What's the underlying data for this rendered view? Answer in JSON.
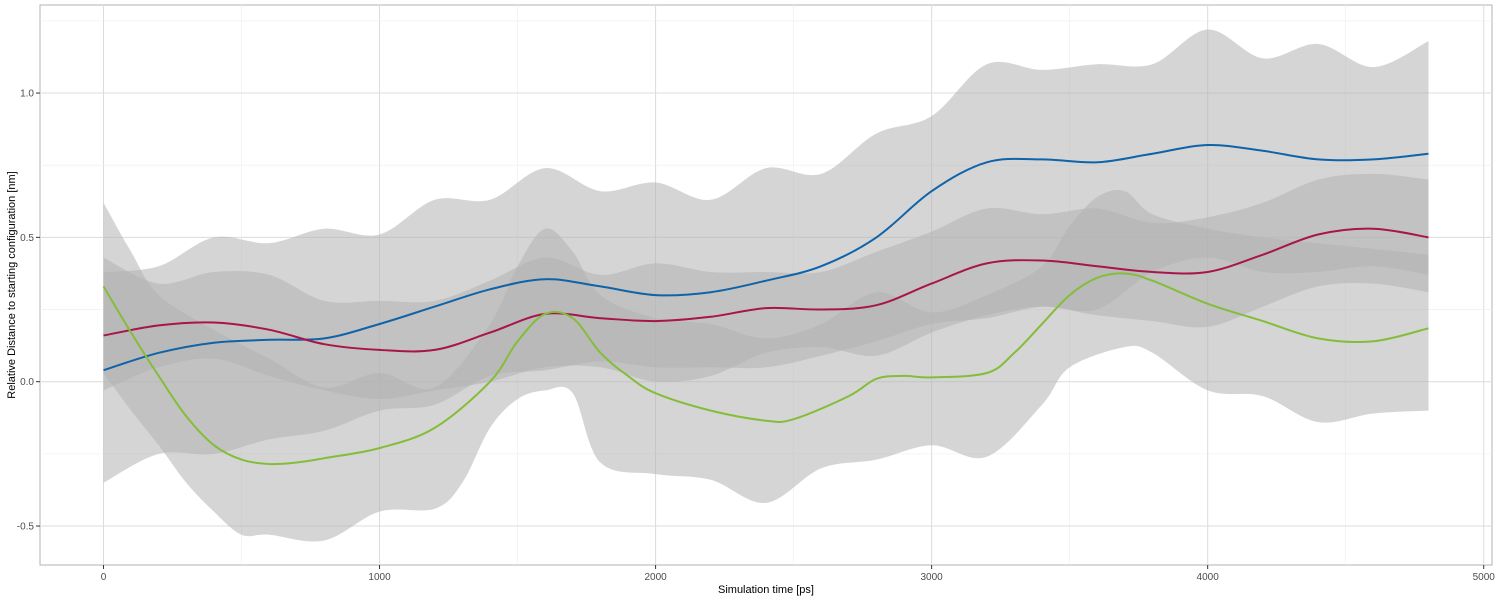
{
  "chart_data": {
    "type": "line",
    "title": "",
    "xlabel": "Simulation time [ps]",
    "ylabel": "Relative Distance to starting configuration [nm]",
    "xlim": [
      -230,
      5030
    ],
    "ylim": [
      -0.635,
      1.305
    ],
    "x_ticks": [
      0,
      1000,
      2000,
      3000,
      4000,
      5000
    ],
    "x_tick_labels": [
      "0",
      "1000",
      "2000",
      "3000",
      "4000",
      "5000"
    ],
    "y_ticks": [
      -0.5,
      0.0,
      0.5,
      1.0
    ],
    "y_tick_labels": [
      "-0.5",
      "0.0",
      "0.5",
      "1.0"
    ],
    "grid": true,
    "legend": "none",
    "series": [
      {
        "color": "#0f63a8",
        "band_color": "#b3b3b3",
        "points": [
          [
            0,
            0.04
          ],
          [
            200,
            0.1
          ],
          [
            400,
            0.135
          ],
          [
            600,
            0.145
          ],
          [
            800,
            0.15
          ],
          [
            1000,
            0.2
          ],
          [
            1200,
            0.26
          ],
          [
            1400,
            0.32
          ],
          [
            1600,
            0.355
          ],
          [
            1800,
            0.33
          ],
          [
            2000,
            0.3
          ],
          [
            2200,
            0.31
          ],
          [
            2400,
            0.35
          ],
          [
            2600,
            0.4
          ],
          [
            2800,
            0.5
          ],
          [
            3000,
            0.66
          ],
          [
            3200,
            0.76
          ],
          [
            3400,
            0.77
          ],
          [
            3600,
            0.76
          ],
          [
            3800,
            0.79
          ],
          [
            4000,
            0.82
          ],
          [
            4200,
            0.8
          ],
          [
            4400,
            0.77
          ],
          [
            4600,
            0.77
          ],
          [
            4800,
            0.79
          ]
        ],
        "upper": [
          [
            0,
            0.38
          ],
          [
            200,
            0.4
          ],
          [
            400,
            0.5
          ],
          [
            600,
            0.48
          ],
          [
            800,
            0.53
          ],
          [
            1000,
            0.51
          ],
          [
            1200,
            0.63
          ],
          [
            1400,
            0.63
          ],
          [
            1600,
            0.74
          ],
          [
            1800,
            0.66
          ],
          [
            2000,
            0.69
          ],
          [
            2200,
            0.63
          ],
          [
            2400,
            0.74
          ],
          [
            2600,
            0.72
          ],
          [
            2800,
            0.86
          ],
          [
            3000,
            0.92
          ],
          [
            3200,
            1.1
          ],
          [
            3400,
            1.08
          ],
          [
            3600,
            1.1
          ],
          [
            3800,
            1.1
          ],
          [
            4000,
            1.22
          ],
          [
            4200,
            1.12
          ],
          [
            4400,
            1.17
          ],
          [
            4600,
            1.09
          ],
          [
            4800,
            1.18
          ]
        ],
        "lower": [
          [
            0,
            -0.35
          ],
          [
            200,
            -0.25
          ],
          [
            400,
            -0.25
          ],
          [
            600,
            -0.2
          ],
          [
            800,
            -0.17
          ],
          [
            1000,
            -0.1
          ],
          [
            1200,
            -0.08
          ],
          [
            1400,
            0.02
          ],
          [
            1600,
            0.04
          ],
          [
            1800,
            0.07
          ],
          [
            2000,
            0.05
          ],
          [
            2200,
            0.05
          ],
          [
            2400,
            0.05
          ],
          [
            2600,
            0.09
          ],
          [
            2800,
            0.14
          ],
          [
            3000,
            0.2
          ],
          [
            3200,
            0.22
          ],
          [
            3400,
            0.26
          ],
          [
            3600,
            0.25
          ],
          [
            3800,
            0.38
          ],
          [
            4000,
            0.43
          ],
          [
            4200,
            0.38
          ],
          [
            4400,
            0.38
          ],
          [
            4600,
            0.4
          ],
          [
            4800,
            0.37
          ]
        ]
      },
      {
        "color": "#a8154a",
        "band_color": "#b3b3b3",
        "points": [
          [
            0,
            0.16
          ],
          [
            200,
            0.195
          ],
          [
            400,
            0.205
          ],
          [
            600,
            0.18
          ],
          [
            800,
            0.13
          ],
          [
            1000,
            0.11
          ],
          [
            1200,
            0.11
          ],
          [
            1400,
            0.17
          ],
          [
            1600,
            0.235
          ],
          [
            1800,
            0.22
          ],
          [
            2000,
            0.21
          ],
          [
            2200,
            0.225
          ],
          [
            2400,
            0.255
          ],
          [
            2600,
            0.25
          ],
          [
            2800,
            0.265
          ],
          [
            3000,
            0.34
          ],
          [
            3200,
            0.41
          ],
          [
            3400,
            0.42
          ],
          [
            3600,
            0.4
          ],
          [
            3800,
            0.38
          ],
          [
            4000,
            0.38
          ],
          [
            4200,
            0.44
          ],
          [
            4400,
            0.51
          ],
          [
            4600,
            0.53
          ],
          [
            4800,
            0.5
          ]
        ],
        "upper": [
          [
            0,
            0.43
          ],
          [
            200,
            0.34
          ],
          [
            400,
            0.38
          ],
          [
            600,
            0.37
          ],
          [
            800,
            0.28
          ],
          [
            1000,
            0.28
          ],
          [
            1200,
            0.28
          ],
          [
            1400,
            0.35
          ],
          [
            1600,
            0.43
          ],
          [
            1800,
            0.37
          ],
          [
            2000,
            0.41
          ],
          [
            2200,
            0.38
          ],
          [
            2400,
            0.38
          ],
          [
            2600,
            0.38
          ],
          [
            2800,
            0.45
          ],
          [
            3000,
            0.52
          ],
          [
            3200,
            0.6
          ],
          [
            3400,
            0.58
          ],
          [
            3600,
            0.6
          ],
          [
            3800,
            0.55
          ],
          [
            4000,
            0.57
          ],
          [
            4200,
            0.62
          ],
          [
            4400,
            0.7
          ],
          [
            4600,
            0.72
          ],
          [
            4800,
            0.7
          ]
        ],
        "lower": [
          [
            0,
            -0.03
          ],
          [
            200,
            0.05
          ],
          [
            400,
            0.08
          ],
          [
            600,
            0.02
          ],
          [
            800,
            -0.03
          ],
          [
            1000,
            -0.06
          ],
          [
            1200,
            -0.03
          ],
          [
            1400,
            0.0
          ],
          [
            1600,
            0.05
          ],
          [
            1800,
            0.05
          ],
          [
            2000,
            0.0
          ],
          [
            2200,
            0.02
          ],
          [
            2400,
            0.1
          ],
          [
            2600,
            0.12
          ],
          [
            2800,
            0.09
          ],
          [
            3000,
            0.17
          ],
          [
            3200,
            0.23
          ],
          [
            3400,
            0.26
          ],
          [
            3600,
            0.23
          ],
          [
            3800,
            0.21
          ],
          [
            4000,
            0.19
          ],
          [
            4200,
            0.26
          ],
          [
            4400,
            0.33
          ],
          [
            4600,
            0.34
          ],
          [
            4800,
            0.31
          ]
        ]
      },
      {
        "color": "#84bd3a",
        "band_color": "#b3b3b3",
        "points": [
          [
            0,
            0.33
          ],
          [
            100,
            0.17
          ],
          [
            200,
            0.02
          ],
          [
            300,
            -0.12
          ],
          [
            400,
            -0.22
          ],
          [
            500,
            -0.27
          ],
          [
            600,
            -0.285
          ],
          [
            700,
            -0.28
          ],
          [
            800,
            -0.265
          ],
          [
            1000,
            -0.23
          ],
          [
            1200,
            -0.16
          ],
          [
            1400,
            0.0
          ],
          [
            1500,
            0.14
          ],
          [
            1600,
            0.235
          ],
          [
            1700,
            0.22
          ],
          [
            1800,
            0.1
          ],
          [
            1900,
            0.02
          ],
          [
            2000,
            -0.04
          ],
          [
            2200,
            -0.1
          ],
          [
            2400,
            -0.135
          ],
          [
            2500,
            -0.13
          ],
          [
            2700,
            -0.05
          ],
          [
            2800,
            0.01
          ],
          [
            2900,
            0.02
          ],
          [
            3000,
            0.015
          ],
          [
            3200,
            0.03
          ],
          [
            3300,
            0.1
          ],
          [
            3400,
            0.2
          ],
          [
            3500,
            0.3
          ],
          [
            3600,
            0.36
          ],
          [
            3700,
            0.375
          ],
          [
            3800,
            0.35
          ],
          [
            4000,
            0.27
          ],
          [
            4200,
            0.21
          ],
          [
            4400,
            0.15
          ],
          [
            4600,
            0.14
          ],
          [
            4800,
            0.185
          ]
        ],
        "upper": [
          [
            0,
            0.62
          ],
          [
            100,
            0.45
          ],
          [
            200,
            0.3
          ],
          [
            400,
            0.18
          ],
          [
            600,
            0.08
          ],
          [
            800,
            -0.02
          ],
          [
            1000,
            0.03
          ],
          [
            1200,
            -0.02
          ],
          [
            1400,
            0.2
          ],
          [
            1500,
            0.4
          ],
          [
            1600,
            0.53
          ],
          [
            1700,
            0.45
          ],
          [
            1800,
            0.3
          ],
          [
            2000,
            0.22
          ],
          [
            2200,
            0.2
          ],
          [
            2400,
            0.15
          ],
          [
            2600,
            0.2
          ],
          [
            2800,
            0.31
          ],
          [
            3000,
            0.24
          ],
          [
            3200,
            0.3
          ],
          [
            3400,
            0.4
          ],
          [
            3500,
            0.54
          ],
          [
            3600,
            0.64
          ],
          [
            3700,
            0.66
          ],
          [
            3800,
            0.58
          ],
          [
            4000,
            0.53
          ],
          [
            4200,
            0.5
          ],
          [
            4400,
            0.48
          ],
          [
            4600,
            0.46
          ],
          [
            4800,
            0.44
          ]
        ],
        "lower": [
          [
            0,
            0.03
          ],
          [
            100,
            -0.1
          ],
          [
            200,
            -0.22
          ],
          [
            300,
            -0.35
          ],
          [
            400,
            -0.45
          ],
          [
            500,
            -0.53
          ],
          [
            600,
            -0.53
          ],
          [
            800,
            -0.55
          ],
          [
            1000,
            -0.45
          ],
          [
            1200,
            -0.44
          ],
          [
            1300,
            -0.35
          ],
          [
            1400,
            -0.16
          ],
          [
            1500,
            -0.06
          ],
          [
            1600,
            -0.03
          ],
          [
            1700,
            -0.04
          ],
          [
            1800,
            -0.28
          ],
          [
            2000,
            -0.32
          ],
          [
            2200,
            -0.34
          ],
          [
            2400,
            -0.42
          ],
          [
            2600,
            -0.3
          ],
          [
            2800,
            -0.27
          ],
          [
            3000,
            -0.22
          ],
          [
            3200,
            -0.26
          ],
          [
            3400,
            -0.08
          ],
          [
            3500,
            0.05
          ],
          [
            3700,
            0.12
          ],
          [
            3800,
            0.1
          ],
          [
            4000,
            -0.03
          ],
          [
            4200,
            -0.05
          ],
          [
            4400,
            -0.14
          ],
          [
            4600,
            -0.11
          ],
          [
            4800,
            -0.1
          ]
        ]
      }
    ]
  }
}
